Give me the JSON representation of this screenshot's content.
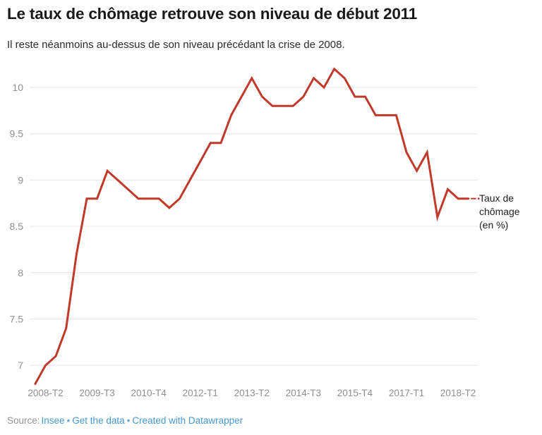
{
  "header": {
    "title": "Le taux de chômage retrouve son niveau de début 2011",
    "subtitle": "Il reste néanmoins au-dessus de son niveau précédant la crise de 2008."
  },
  "legend": {
    "label": "Taux de chômage (en %)"
  },
  "footer": {
    "source_label": "Source:",
    "separator": "•",
    "links": [
      "Insee",
      "Get the data",
      "Created with Datawrapper"
    ]
  },
  "chart_data": {
    "type": "line",
    "title": "Le taux de chômage retrouve son niveau de début 2011",
    "ylabel": "Taux de chômage (en %)",
    "xlabel": "",
    "grid": "horizontal",
    "legend_position": "right-end-of-line",
    "line_color": "#c0392b",
    "ylim": [
      6.7,
      10.3
    ],
    "y_ticks": [
      7,
      7.5,
      8,
      8.5,
      9,
      9.5,
      10
    ],
    "x_tick_labels": [
      "2008-T2",
      "2009-T3",
      "2010-T4",
      "2012-T1",
      "2013-T2",
      "2014-T3",
      "2015-T4",
      "2017-T1",
      "2018-T2"
    ],
    "x": [
      "2008-T1",
      "2008-T2",
      "2008-T3",
      "2008-T4",
      "2009-T1",
      "2009-T2",
      "2009-T3",
      "2009-T4",
      "2010-T1",
      "2010-T2",
      "2010-T3",
      "2010-T4",
      "2011-T1",
      "2011-T2",
      "2011-T3",
      "2011-T4",
      "2012-T1",
      "2012-T2",
      "2012-T3",
      "2012-T4",
      "2013-T1",
      "2013-T2",
      "2013-T3",
      "2013-T4",
      "2014-T1",
      "2014-T2",
      "2014-T3",
      "2014-T4",
      "2015-T1",
      "2015-T2",
      "2015-T3",
      "2015-T4",
      "2016-T1",
      "2016-T2",
      "2016-T3",
      "2016-T4",
      "2017-T1",
      "2017-T2",
      "2017-T3",
      "2017-T4",
      "2018-T1",
      "2018-T2",
      "2018-T3"
    ],
    "values": [
      6.8,
      7.0,
      7.1,
      7.4,
      8.2,
      8.8,
      8.8,
      9.1,
      9.0,
      8.9,
      8.8,
      8.8,
      8.8,
      8.7,
      8.8,
      9.0,
      9.2,
      9.4,
      9.4,
      9.7,
      9.9,
      10.1,
      9.9,
      9.8,
      9.8,
      9.8,
      9.9,
      10.1,
      10.0,
      10.2,
      10.1,
      9.9,
      9.9,
      9.7,
      9.7,
      9.7,
      9.3,
      9.1,
      9.3,
      8.6,
      8.9,
      8.8,
      8.8
    ]
  }
}
